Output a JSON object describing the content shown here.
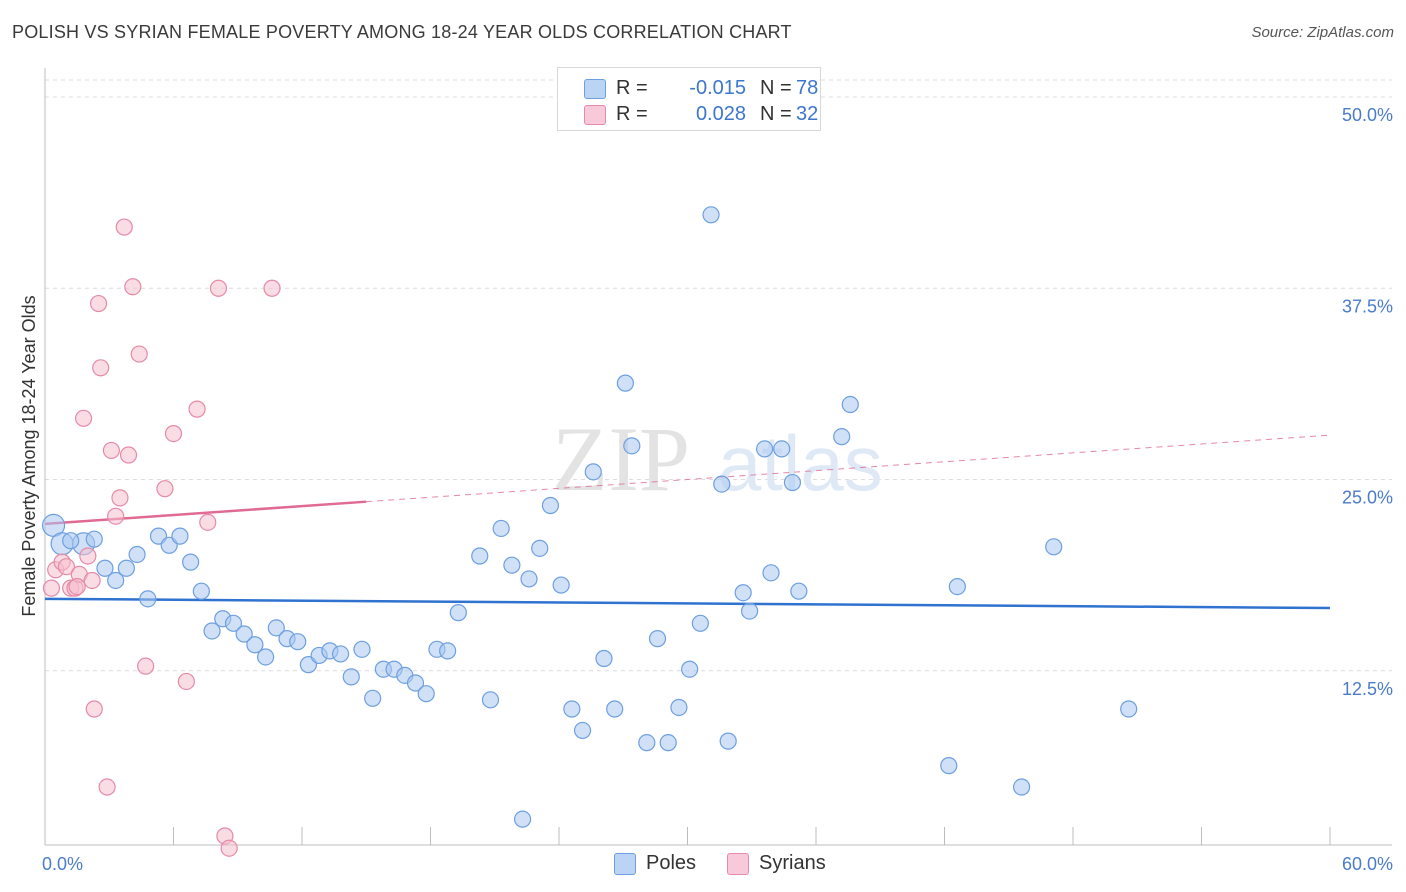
{
  "title": "POLISH VS SYRIAN FEMALE POVERTY AMONG 18-24 YEAR OLDS CORRELATION CHART",
  "source": "Source: ZipAtlas.com",
  "watermark": {
    "zip": "ZIP",
    "atlas": "atlas"
  },
  "legend": {
    "r_label": "R =",
    "n_label": "N =",
    "rows": [
      {
        "series": "Poles",
        "r": "-0.015",
        "n": "78"
      },
      {
        "series": "Syrians",
        "r": "0.028",
        "n": "32"
      }
    ]
  },
  "colors": {
    "poles_fill": "#a9c8f0",
    "poles_stroke": "#6d9fe0",
    "poles_line": "#2f72cf",
    "syrians_fill": "#f6bfd0",
    "syrians_stroke": "#e58aa8",
    "syrians_line": "#e06a92",
    "tick_text": "#4a7cc9",
    "grid": "#dcdcdc"
  },
  "chart_data": {
    "type": "scatter",
    "title": "POLISH VS SYRIAN FEMALE POVERTY AMONG 18-24 YEAR OLDS CORRELATION CHART",
    "xlabel": "",
    "ylabel": "Female Poverty Among 18-24 Year Olds",
    "xlim": [
      0,
      60
    ],
    "ylim": [
      0,
      50
    ],
    "x_tick_labels": [
      "0.0%",
      "60.0%"
    ],
    "y_ticks": [
      12.5,
      25.0,
      37.5,
      50.0
    ],
    "y_tick_labels": [
      "12.5%",
      "25.0%",
      "37.5%",
      "50.0%"
    ],
    "grid": true,
    "legend_position": "top-center",
    "series": [
      {
        "name": "Poles",
        "trend": {
          "x0": 0,
          "y0": 17.2,
          "x1": 60,
          "y1": 16.6,
          "solid_until": 60
        },
        "points": [
          [
            0.4,
            22.0
          ],
          [
            0.8,
            20.8
          ],
          [
            1.8,
            20.8
          ],
          [
            2.3,
            21.1
          ],
          [
            2.8,
            19.2
          ],
          [
            3.3,
            18.4
          ],
          [
            3.8,
            19.2
          ],
          [
            4.3,
            20.1
          ],
          [
            4.8,
            17.2
          ],
          [
            5.3,
            21.3
          ],
          [
            5.8,
            20.7
          ],
          [
            6.3,
            21.3
          ],
          [
            6.8,
            19.6
          ],
          [
            7.3,
            17.7
          ],
          [
            7.8,
            15.1
          ],
          [
            8.3,
            15.9
          ],
          [
            8.8,
            15.6
          ],
          [
            9.3,
            14.9
          ],
          [
            9.8,
            14.2
          ],
          [
            10.3,
            13.4
          ],
          [
            10.8,
            15.3
          ],
          [
            11.3,
            14.6
          ],
          [
            11.8,
            14.4
          ],
          [
            12.3,
            12.9
          ],
          [
            12.8,
            13.5
          ],
          [
            13.3,
            13.8
          ],
          [
            13.8,
            13.6
          ],
          [
            14.3,
            12.1
          ],
          [
            14.8,
            13.9
          ],
          [
            15.3,
            10.7
          ],
          [
            15.8,
            12.6
          ],
          [
            16.3,
            12.6
          ],
          [
            16.8,
            12.2
          ],
          [
            17.3,
            11.7
          ],
          [
            17.8,
            11.0
          ],
          [
            18.3,
            13.9
          ],
          [
            18.8,
            13.8
          ],
          [
            19.3,
            16.3
          ],
          [
            20.3,
            20.0
          ],
          [
            20.8,
            10.6
          ],
          [
            21.3,
            21.8
          ],
          [
            21.8,
            19.4
          ],
          [
            22.3,
            2.8
          ],
          [
            22.6,
            18.5
          ],
          [
            23.1,
            20.5
          ],
          [
            23.6,
            23.3
          ],
          [
            24.1,
            18.1
          ],
          [
            24.6,
            10.0
          ],
          [
            25.1,
            8.6
          ],
          [
            25.6,
            25.5
          ],
          [
            26.1,
            13.3
          ],
          [
            26.6,
            10.0
          ],
          [
            27.1,
            31.3
          ],
          [
            27.4,
            27.2
          ],
          [
            28.1,
            7.8
          ],
          [
            28.6,
            14.6
          ],
          [
            29.1,
            7.8
          ],
          [
            29.6,
            10.1
          ],
          [
            30.1,
            12.6
          ],
          [
            30.6,
            15.6
          ],
          [
            31.1,
            42.3
          ],
          [
            31.6,
            24.7
          ],
          [
            31.9,
            7.9
          ],
          [
            32.6,
            17.6
          ],
          [
            32.9,
            16.4
          ],
          [
            33.6,
            27.0
          ],
          [
            33.9,
            18.9
          ],
          [
            34.4,
            27.0
          ],
          [
            34.9,
            24.8
          ],
          [
            35.2,
            17.7
          ],
          [
            37.2,
            27.8
          ],
          [
            37.6,
            29.9
          ],
          [
            42.2,
            6.3
          ],
          [
            42.6,
            18.0
          ],
          [
            45.6,
            4.9
          ],
          [
            47.1,
            20.6
          ],
          [
            50.6,
            10.0
          ],
          [
            1.2,
            21.0
          ]
        ]
      },
      {
        "name": "Syrians",
        "trend": {
          "x0": 0,
          "y0": 22.1,
          "x1": 60,
          "y1": 27.9,
          "solid_until": 15
        },
        "points": [
          [
            0.3,
            17.9
          ],
          [
            0.5,
            19.1
          ],
          [
            0.8,
            19.6
          ],
          [
            1.0,
            19.3
          ],
          [
            1.2,
            17.9
          ],
          [
            1.4,
            17.9
          ],
          [
            1.6,
            18.8
          ],
          [
            1.8,
            29.0
          ],
          [
            2.0,
            20.0
          ],
          [
            2.2,
            18.4
          ],
          [
            2.3,
            10.0
          ],
          [
            2.5,
            36.5
          ],
          [
            2.6,
            32.3
          ],
          [
            2.9,
            4.9
          ],
          [
            3.1,
            26.9
          ],
          [
            3.3,
            22.6
          ],
          [
            3.5,
            23.8
          ],
          [
            3.7,
            41.5
          ],
          [
            3.9,
            26.6
          ],
          [
            4.1,
            37.6
          ],
          [
            4.4,
            33.2
          ],
          [
            4.7,
            12.8
          ],
          [
            5.6,
            24.4
          ],
          [
            6.0,
            28.0
          ],
          [
            6.6,
            11.8
          ],
          [
            7.1,
            29.6
          ],
          [
            7.6,
            22.2
          ],
          [
            8.1,
            37.5
          ],
          [
            8.4,
            1.7
          ],
          [
            8.6,
            0.9
          ],
          [
            10.6,
            37.5
          ],
          [
            1.5,
            18.0
          ]
        ]
      }
    ]
  }
}
